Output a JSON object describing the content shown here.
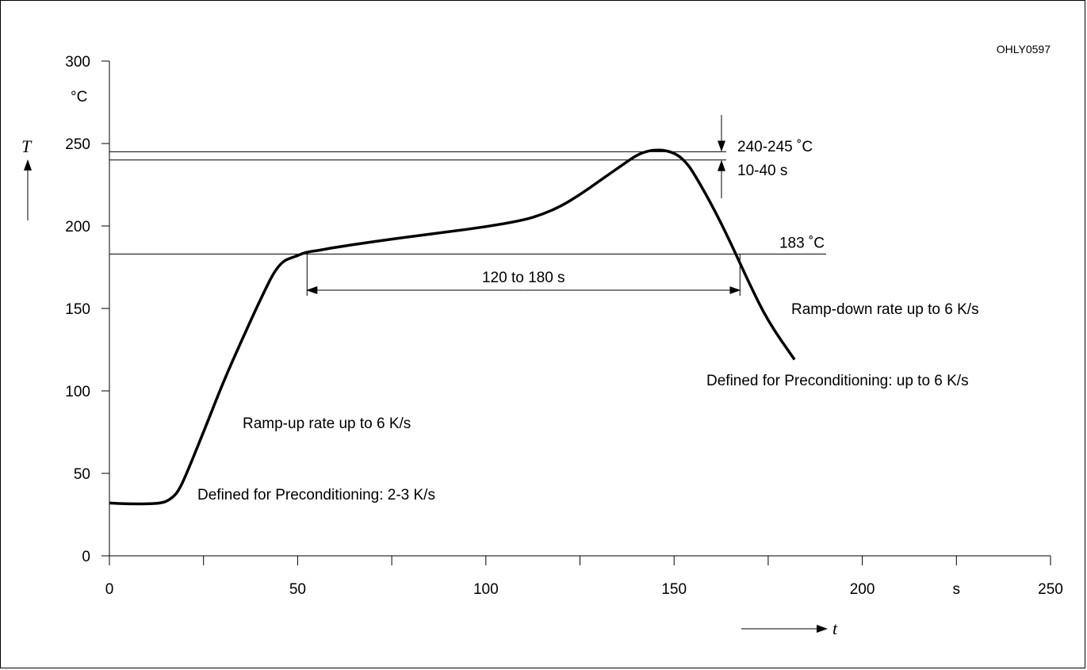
{
  "chart_data": {
    "type": "line",
    "figure_id": "OHLY0597",
    "xlabel": "t",
    "xunit": "s",
    "ylabel": "T",
    "yunit": "°C",
    "xlim": [
      0,
      250
    ],
    "ylim": [
      0,
      300
    ],
    "xticks": [
      0,
      50,
      100,
      150,
      200,
      250
    ],
    "yticks": [
      0,
      50,
      100,
      150,
      200,
      250,
      300
    ],
    "series": [
      {
        "x": [
          0,
          5,
          10,
          14,
          16,
          18,
          20,
          25,
          30,
          35,
          40,
          45,
          50,
          52,
          55,
          60,
          70,
          80,
          90,
          100,
          110,
          115,
          120,
          125,
          130,
          135,
          140,
          143,
          145,
          147,
          149,
          151,
          153,
          155,
          160,
          165,
          170,
          175,
          182
        ],
        "y": [
          32,
          31.5,
          31.5,
          32,
          34,
          38,
          47,
          75,
          104,
          130,
          155,
          178,
          182,
          184,
          185,
          187,
          190.5,
          193.5,
          196.5,
          199.5,
          203.5,
          207,
          212,
          219,
          227,
          235,
          243,
          245.5,
          246,
          246,
          245,
          243,
          239,
          233,
          213,
          190,
          165,
          142,
          119
        ]
      }
    ],
    "reference_lines": [
      {
        "y": 245
      },
      {
        "y": 240
      },
      {
        "y": 183,
        "label": "183 ˚C"
      }
    ],
    "annotations": {
      "peak_temp": "240-245 ˚C",
      "peak_time": "10-40 s",
      "soak_span": "120 to 180 s",
      "ramp_up": "Ramp-up rate up to 6 K/s",
      "ramp_up_precond": "Defined for Preconditioning: 2-3 K/s",
      "ramp_down": "Ramp-down rate up to 6 K/s",
      "ramp_down_precond": "Defined for Preconditioning: up to 6 K/s"
    }
  }
}
